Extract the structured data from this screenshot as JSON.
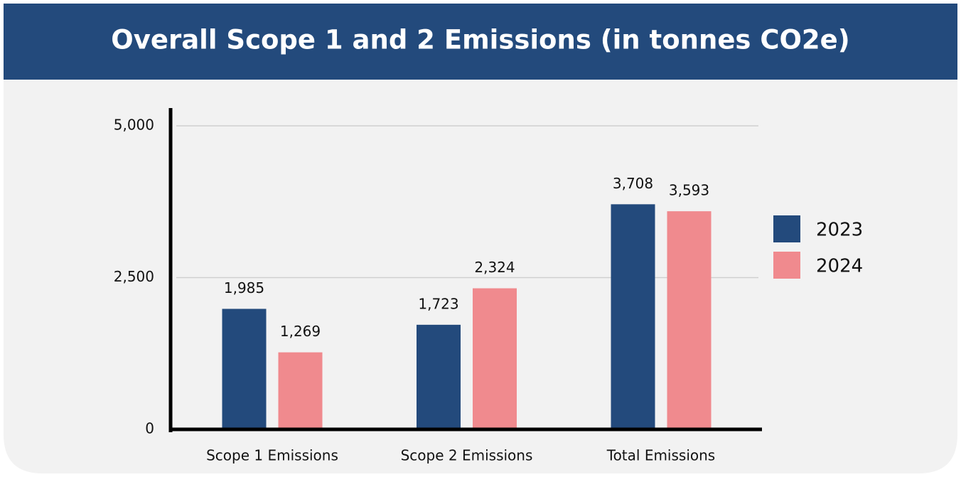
{
  "chart_data": {
    "type": "bar",
    "title": "Overall Scope 1 and 2 Emissions (in tonnes CO2e)",
    "categories": [
      "Scope 1 Emissions",
      "Scope 2 Emissions",
      "Total Emissions"
    ],
    "series": [
      {
        "name": "2023",
        "color": "#234a7c",
        "values": [
          1985,
          1723,
          3708
        ],
        "value_labels": [
          "1,985",
          "1,723",
          "3,708"
        ]
      },
      {
        "name": "2024",
        "color": "#f08a8e",
        "values": [
          1269,
          2324,
          3593
        ],
        "value_labels": [
          "1,269",
          "2,324",
          "3,593"
        ]
      }
    ],
    "ylim": [
      0,
      5000
    ],
    "yticks": [
      0,
      {
        "value": 2500,
        "label": "2,500"
      },
      {
        "value": 5000,
        "label": "5,000"
      }
    ],
    "grid": true,
    "legend": "right"
  }
}
